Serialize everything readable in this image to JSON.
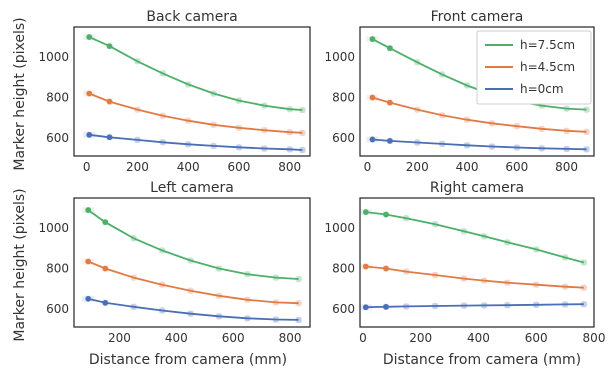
{
  "figure": {
    "ylabel_top": "Marker height (pixels)",
    "ylabel_bottom": "Marker height (pixels)",
    "xlabel_left": "Distance from  camera (mm)",
    "xlabel_right": "Distance from  camera (mm)"
  },
  "legend": {
    "placement": "top-right of Front camera panel",
    "entries": [
      {
        "label": "h=7.5cm",
        "color": "#4daf6a"
      },
      {
        "label": "h=4.5cm",
        "color": "#e07b46"
      },
      {
        "label": "h=0cm",
        "color": "#4a6fb5"
      }
    ]
  },
  "colors": {
    "green": "#4daf6a",
    "orange": "#e07b46",
    "blue": "#4a6fb5"
  },
  "chart_data": [
    {
      "type": "line",
      "title": "Back camera",
      "xlim": [
        -50,
        880
      ],
      "ylim": [
        510,
        1150
      ],
      "xticks": [
        0,
        200,
        400,
        600,
        800
      ],
      "yticks": [
        600,
        800,
        1000
      ],
      "series": [
        {
          "name": "h=7.5cm",
          "x": [
            10,
            90,
            200,
            300,
            400,
            500,
            600,
            700,
            800,
            850
          ],
          "y": [
            1100,
            1055,
            980,
            920,
            865,
            820,
            785,
            760,
            742,
            738
          ]
        },
        {
          "name": "h=4.5cm",
          "x": [
            10,
            90,
            200,
            300,
            400,
            500,
            600,
            700,
            800,
            850
          ],
          "y": [
            820,
            780,
            740,
            710,
            685,
            665,
            650,
            638,
            628,
            625
          ]
        },
        {
          "name": "h=0cm",
          "x": [
            10,
            90,
            200,
            300,
            400,
            500,
            600,
            700,
            800,
            850
          ],
          "y": [
            615,
            603,
            590,
            578,
            568,
            560,
            553,
            547,
            543,
            540
          ]
        }
      ]
    },
    {
      "type": "line",
      "title": "Front camera",
      "xlim": [
        -30,
        910
      ],
      "ylim": [
        510,
        1150
      ],
      "xticks": [
        0,
        200,
        400,
        600,
        800
      ],
      "yticks": [
        600,
        800,
        1000
      ],
      "series": [
        {
          "name": "h=7.5cm",
          "x": [
            20,
            90,
            200,
            300,
            400,
            500,
            600,
            700,
            800,
            880
          ],
          "y": [
            1090,
            1045,
            975,
            915,
            860,
            815,
            782,
            760,
            745,
            740
          ]
        },
        {
          "name": "h=4.5cm",
          "x": [
            20,
            90,
            200,
            300,
            400,
            500,
            600,
            700,
            800,
            880
          ],
          "y": [
            800,
            775,
            740,
            712,
            690,
            672,
            658,
            645,
            635,
            630
          ]
        },
        {
          "name": "h=0cm",
          "x": [
            20,
            90,
            200,
            300,
            400,
            500,
            600,
            700,
            800,
            880
          ],
          "y": [
            592,
            585,
            577,
            570,
            563,
            557,
            552,
            548,
            545,
            543
          ]
        }
      ]
    },
    {
      "type": "line",
      "title": "Left camera",
      "xlim": [
        40,
        870
      ],
      "ylim": [
        510,
        1150
      ],
      "xticks": [
        200,
        400,
        600,
        800
      ],
      "yticks": [
        600,
        800,
        1000
      ],
      "series": [
        {
          "name": "h=7.5cm",
          "x": [
            90,
            150,
            250,
            350,
            450,
            550,
            650,
            750,
            830
          ],
          "y": [
            1090,
            1030,
            950,
            890,
            840,
            800,
            772,
            755,
            748
          ]
        },
        {
          "name": "h=4.5cm",
          "x": [
            90,
            150,
            250,
            350,
            450,
            550,
            650,
            750,
            830
          ],
          "y": [
            835,
            800,
            755,
            720,
            690,
            665,
            645,
            632,
            628
          ]
        },
        {
          "name": "h=0cm",
          "x": [
            90,
            150,
            250,
            350,
            450,
            550,
            650,
            750,
            830
          ],
          "y": [
            650,
            630,
            610,
            592,
            576,
            563,
            553,
            547,
            545
          ]
        }
      ]
    },
    {
      "type": "line",
      "title": "Right camera",
      "xlim": [
        -10,
        800
      ],
      "ylim": [
        510,
        1150
      ],
      "xticks": [
        0,
        200,
        400,
        600,
        800
      ],
      "yticks": [
        600,
        800,
        1000
      ],
      "series": [
        {
          "name": "h=7.5cm",
          "x": [
            10,
            80,
            150,
            250,
            350,
            420,
            500,
            600,
            700,
            765
          ],
          "y": [
            1080,
            1068,
            1050,
            1020,
            985,
            960,
            930,
            895,
            855,
            830
          ]
        },
        {
          "name": "h=4.5cm",
          "x": [
            10,
            80,
            150,
            250,
            350,
            420,
            500,
            600,
            700,
            765
          ],
          "y": [
            810,
            800,
            785,
            768,
            750,
            740,
            730,
            720,
            710,
            705
          ]
        },
        {
          "name": "h=0cm",
          "x": [
            10,
            80,
            150,
            250,
            350,
            420,
            500,
            600,
            700,
            765
          ],
          "y": [
            608,
            610,
            612,
            614,
            616,
            617,
            618,
            620,
            622,
            623
          ]
        }
      ]
    }
  ]
}
